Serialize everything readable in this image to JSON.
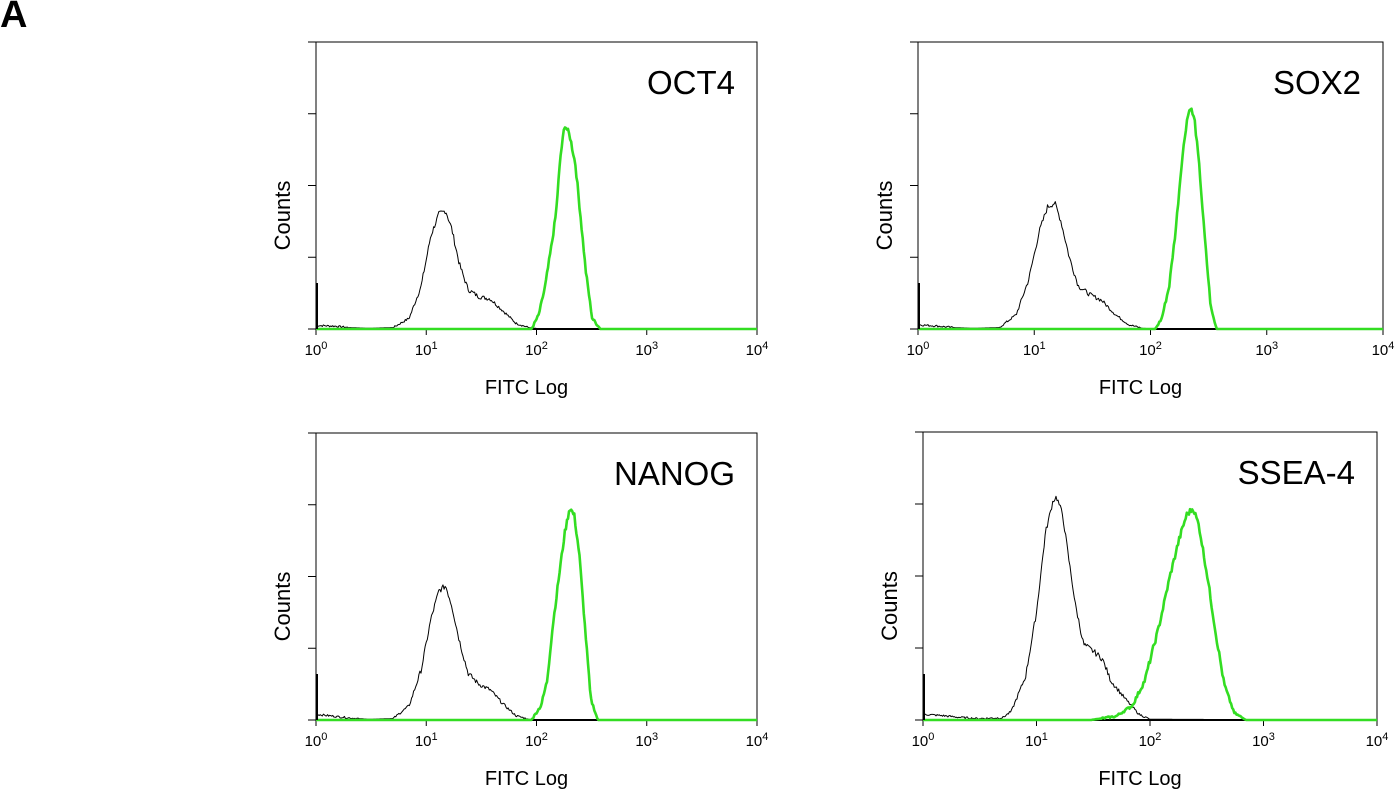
{
  "figure_label": "A",
  "colors": {
    "control": "#000000",
    "stained": "#33dd22",
    "axis": "#000000"
  },
  "chart_data": [
    {
      "type": "line",
      "title": "OCT4",
      "xlabel": "FITC Log",
      "ylabel": "Counts",
      "xscale": "log",
      "xlim": [
        1,
        10000
      ],
      "ylim": [
        0,
        4
      ],
      "y_tick_count": 5,
      "xticks": [
        {
          "base": "10",
          "exp": "0",
          "value": 1
        },
        {
          "base": "10",
          "exp": "1",
          "value": 10
        },
        {
          "base": "10",
          "exp": "2",
          "value": 100
        },
        {
          "base": "10",
          "exp": "3",
          "value": 1000
        },
        {
          "base": "10",
          "exp": "4",
          "value": 10000
        }
      ],
      "grid": false,
      "series": [
        {
          "role": "control",
          "x": [
            1,
            1.5,
            2,
            3,
            5,
            7,
            9,
            11,
            13,
            15,
            17,
            20,
            24,
            30,
            38,
            50,
            65,
            85,
            110,
            10000
          ],
          "y": [
            0.05,
            0.04,
            0.02,
            0.01,
            0.02,
            0.15,
            0.6,
            1.3,
            1.6,
            1.65,
            1.4,
            0.9,
            0.55,
            0.45,
            0.42,
            0.25,
            0.08,
            0.02,
            0,
            0
          ]
        },
        {
          "role": "stained",
          "x": [
            1,
            90,
            105,
            120,
            135,
            150,
            165,
            180,
            200,
            225,
            250,
            280,
            320,
            380,
            10000
          ],
          "y": [
            0,
            0,
            0.2,
            0.6,
            1.1,
            1.6,
            2.4,
            2.85,
            2.7,
            2.3,
            1.6,
            0.8,
            0.15,
            0,
            0
          ]
        }
      ]
    },
    {
      "type": "line",
      "title": "SOX2",
      "xlabel": "FITC Log",
      "ylabel": "Counts",
      "xscale": "log",
      "xlim": [
        1,
        10000
      ],
      "ylim": [
        0,
        4
      ],
      "y_tick_count": 5,
      "xticks": [
        {
          "base": "10",
          "exp": "0",
          "value": 1
        },
        {
          "base": "10",
          "exp": "1",
          "value": 10
        },
        {
          "base": "10",
          "exp": "2",
          "value": 100
        },
        {
          "base": "10",
          "exp": "3",
          "value": 1000
        },
        {
          "base": "10",
          "exp": "4",
          "value": 10000
        }
      ],
      "grid": false,
      "series": [
        {
          "role": "control",
          "x": [
            1,
            1.5,
            2,
            3,
            5,
            7,
            9,
            11,
            13,
            15,
            17,
            20,
            24,
            30,
            38,
            50,
            65,
            85,
            110,
            10000
          ],
          "y": [
            0.06,
            0.04,
            0.02,
            0.01,
            0.02,
            0.2,
            0.7,
            1.35,
            1.7,
            1.76,
            1.5,
            1.0,
            0.6,
            0.48,
            0.4,
            0.2,
            0.06,
            0.01,
            0,
            0
          ]
        },
        {
          "role": "stained",
          "x": [
            1,
            110,
            125,
            145,
            165,
            185,
            205,
            220,
            240,
            265,
            295,
            330,
            370,
            10000
          ],
          "y": [
            0,
            0,
            0.15,
            0.6,
            1.4,
            2.3,
            2.9,
            3.1,
            2.9,
            2.2,
            1.2,
            0.3,
            0,
            0
          ]
        }
      ]
    },
    {
      "type": "line",
      "title": "NANOG",
      "xlabel": "FITC Log",
      "ylabel": "Counts",
      "xscale": "log",
      "xlim": [
        1,
        10000
      ],
      "ylim": [
        0,
        4
      ],
      "y_tick_count": 5,
      "xticks": [
        {
          "base": "10",
          "exp": "0",
          "value": 1
        },
        {
          "base": "10",
          "exp": "1",
          "value": 10
        },
        {
          "base": "10",
          "exp": "2",
          "value": 100
        },
        {
          "base": "10",
          "exp": "3",
          "value": 1000
        },
        {
          "base": "10",
          "exp": "4",
          "value": 10000
        }
      ],
      "grid": false,
      "series": [
        {
          "role": "control",
          "x": [
            1,
            1.5,
            2,
            3,
            5,
            7,
            9,
            11,
            13,
            15,
            17,
            20,
            24,
            30,
            38,
            50,
            65,
            85,
            110,
            10000
          ],
          "y": [
            0.08,
            0.05,
            0.03,
            0.01,
            0.02,
            0.2,
            0.7,
            1.4,
            1.8,
            1.87,
            1.6,
            1.1,
            0.65,
            0.5,
            0.42,
            0.22,
            0.06,
            0.01,
            0,
            0
          ]
        },
        {
          "role": "stained",
          "x": [
            1,
            90,
            110,
            125,
            140,
            160,
            180,
            200,
            220,
            245,
            275,
            310,
            360,
            10000
          ],
          "y": [
            0,
            0,
            0.2,
            0.55,
            1.3,
            2.0,
            2.6,
            2.96,
            2.85,
            2.3,
            1.3,
            0.3,
            0,
            0
          ]
        }
      ]
    },
    {
      "type": "line",
      "title": "SSEA-4",
      "xlabel": "FITC Log",
      "ylabel": "Counts",
      "xscale": "log",
      "xlim": [
        1,
        10000
      ],
      "ylim": [
        0,
        4
      ],
      "y_tick_count": 5,
      "xticks": [
        {
          "base": "10",
          "exp": "0",
          "value": 1
        },
        {
          "base": "10",
          "exp": "1",
          "value": 10
        },
        {
          "base": "10",
          "exp": "2",
          "value": 100
        },
        {
          "base": "10",
          "exp": "3",
          "value": 1000
        },
        {
          "base": "10",
          "exp": "4",
          "value": 10000
        }
      ],
      "grid": false,
      "series": [
        {
          "role": "control",
          "x": [
            1,
            1.5,
            2,
            3,
            5,
            6,
            8,
            10,
            12,
            14,
            15,
            17,
            19,
            22,
            26,
            32,
            38,
            45,
            60,
            80,
            100,
            10000
          ],
          "y": [
            0.08,
            0.06,
            0.04,
            0.02,
            0.03,
            0.12,
            0.6,
            1.5,
            2.6,
            3.05,
            3.1,
            2.85,
            2.3,
            1.6,
            1.05,
            0.95,
            0.85,
            0.55,
            0.3,
            0.08,
            0.01,
            0
          ]
        },
        {
          "role": "stained",
          "x": [
            1,
            30,
            50,
            70,
            90,
            120,
            150,
            180,
            210,
            240,
            270,
            320,
            380,
            450,
            550,
            700,
            10000
          ],
          "y": [
            0,
            0,
            0.05,
            0.2,
            0.55,
            1.3,
            2.0,
            2.5,
            2.85,
            2.94,
            2.7,
            2.0,
            1.2,
            0.5,
            0.1,
            0,
            0
          ]
        }
      ]
    }
  ]
}
